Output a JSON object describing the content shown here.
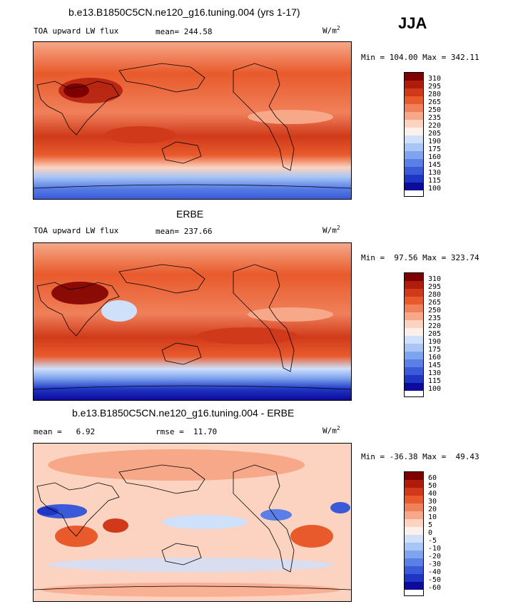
{
  "season": "JJA",
  "panels": [
    {
      "title": "b.e13.B1850C5CN.ne120_g16.tuning.004 (yrs 1-17)",
      "left": "TOA upward LW flux",
      "center": "mean= 244.58",
      "units": "W/m",
      "units_exp": "2",
      "minmax": "Min = 104.00 Max = 342.11",
      "labels": [
        "310",
        "295",
        "280",
        "265",
        "250",
        "235",
        "220",
        "205",
        "190",
        "175",
        "160",
        "145",
        "130",
        "115",
        "100"
      ]
    },
    {
      "title": "ERBE",
      "left": "TOA upward LW flux",
      "center": "mean= 237.66",
      "units": "W/m",
      "units_exp": "2",
      "minmax": "Min =  97.56 Max = 323.74",
      "labels": [
        "310",
        "295",
        "280",
        "265",
        "250",
        "235",
        "220",
        "205",
        "190",
        "175",
        "160",
        "145",
        "130",
        "115",
        "100"
      ]
    },
    {
      "title": "b.e13.B1850C5CN.ne120_g16.tuning.004 - ERBE",
      "left": "mean =   6.92",
      "center": "rmse =  11.70",
      "units": "W/m",
      "units_exp": "2",
      "minmax": "Min = -36.38 Max =  49.43",
      "labels": [
        "60",
        "50",
        "40",
        "30",
        "20",
        "10",
        "5",
        "0",
        "-5",
        "-10",
        "-20",
        "-30",
        "-40",
        "-50",
        "-60"
      ]
    }
  ],
  "colors": {
    "scale": [
      "#7f0000",
      "#b01c0b",
      "#d03a1a",
      "#e85a2c",
      "#f0805a",
      "#f7a888",
      "#fcd3c0",
      "#fbf0ea",
      "#cfe0fb",
      "#a8c5f5",
      "#7fa4ee",
      "#5a7fe6",
      "#3a5ad8",
      "#1f36c4",
      "#0e0a9a"
    ]
  }
}
